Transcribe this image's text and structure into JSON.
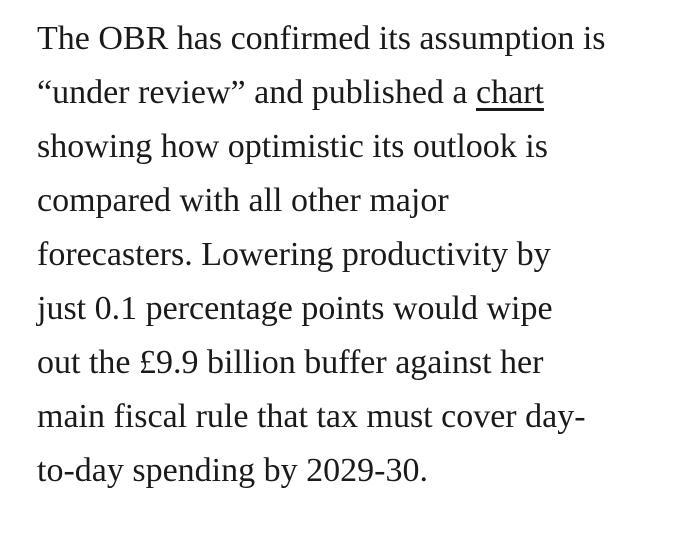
{
  "page": {
    "background_color": "#ffffff",
    "text_color": "#1a1a1a"
  },
  "article": {
    "line1": "The OBR has confirmed its assumption is",
    "line2_before": "“under review” and published a ",
    "line2_link": "chart",
    "line3": "showing how optimistic its outlook is",
    "line4": "compared with all other major",
    "line5": "forecasters. Lowering productivity by",
    "line6": "just 0.1 percentage points would wipe",
    "line7": "out the £9.9 billion buffer against her",
    "line8": "main fiscal rule that tax must cover day-",
    "line9": "to-day spending by 2029-30."
  }
}
